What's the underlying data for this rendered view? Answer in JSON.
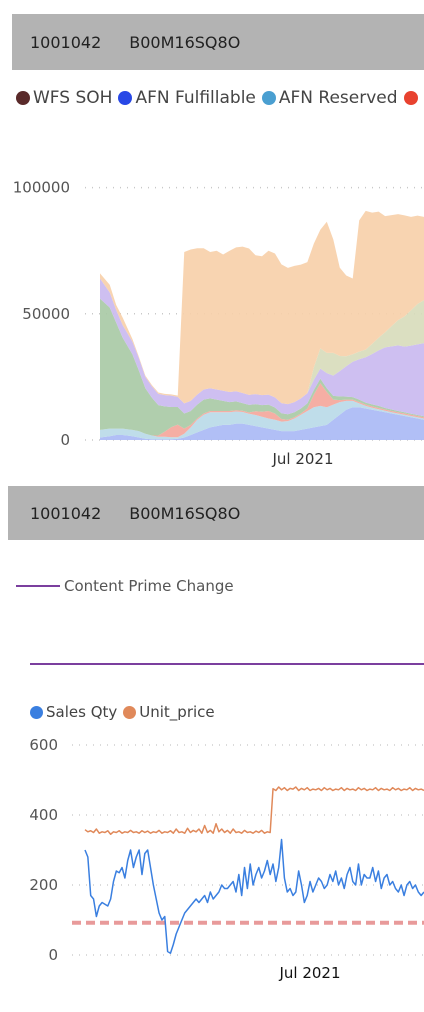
{
  "header1": {
    "id": "1001042",
    "asin": "B00M16SQ8O"
  },
  "header2": {
    "id": "1001042",
    "asin": "B00M16SQ8O"
  },
  "legend1": [
    {
      "label": "WFS SOH",
      "color": "#5a2a2a"
    },
    {
      "label": "AFN Fulfillable",
      "color": "#2848e6"
    },
    {
      "label": "AFN Reserved",
      "color": "#4a9fd1"
    },
    {
      "label": "",
      "color": "#e8422f"
    }
  ],
  "legend2": {
    "label": "Content Prime Change",
    "color": "#7b3f9e"
  },
  "legend3": [
    {
      "label": "Sales Qty",
      "color": "#3a7fe0"
    },
    {
      "label": "Unit_price",
      "color": "#e0895a"
    }
  ],
  "chart_data": [
    {
      "type": "area",
      "stacked": true,
      "x_tick_label": "Jul 2021",
      "ylim": [
        0,
        105000
      ],
      "y_ticks": [
        0,
        50000,
        100000
      ],
      "x": [
        0,
        3,
        5,
        7,
        10,
        12,
        14,
        16,
        18,
        20,
        22,
        24,
        26,
        28,
        30,
        32,
        34,
        36,
        38,
        40,
        42,
        44,
        46,
        48,
        50,
        52,
        54,
        56,
        58,
        60,
        62,
        64,
        66,
        68,
        70,
        72,
        74,
        76,
        78,
        80,
        82,
        84,
        86,
        88,
        90,
        92,
        94,
        96,
        98,
        100
      ],
      "series": [
        {
          "color": "#a8b8f5",
          "values": [
            1000,
            1500,
            2000,
            2000,
            1500,
            1000,
            500,
            300,
            300,
            300,
            300,
            500,
            1000,
            2000,
            3000,
            4000,
            5000,
            5500,
            6000,
            6000,
            6500,
            6500,
            6000,
            5500,
            5000,
            4500,
            4000,
            3500,
            3500,
            3500,
            4000,
            4500,
            5000,
            5500,
            6000,
            8000,
            10000,
            12000,
            13000,
            13000,
            12500,
            12000,
            11500,
            11000,
            10500,
            10000,
            9500,
            9000,
            8500,
            8000
          ]
        },
        {
          "color": "#b8d9e8",
          "values": [
            3000,
            3000,
            2500,
            2500,
            2500,
            2500,
            2000,
            1500,
            1000,
            1000,
            800,
            600,
            1500,
            3000,
            5000,
            6000,
            6000,
            5500,
            5000,
            5000,
            4800,
            4600,
            4400,
            4400,
            4200,
            4000,
            4000,
            3800,
            4000,
            5000,
            6000,
            7000,
            8000,
            8000,
            7000,
            6000,
            5000,
            3500,
            2500,
            1500,
            1000,
            800,
            700,
            600,
            500,
            500,
            500,
            500,
            500,
            500
          ]
        },
        {
          "color": "#f4a59a",
          "values": [
            0,
            0,
            0,
            0,
            0,
            0,
            0,
            0,
            500,
            2000,
            4000,
            5000,
            2000,
            1000,
            500,
            500,
            500,
            500,
            500,
            500,
            500,
            500,
            500,
            1500,
            2000,
            3000,
            2500,
            1000,
            500,
            500,
            500,
            1000,
            5000,
            9000,
            6000,
            2000,
            800,
            500,
            500,
            500,
            500,
            500,
            500,
            500,
            500,
            500,
            500,
            500,
            500,
            500
          ]
        },
        {
          "color": "#a7c9a4",
          "values": [
            52000,
            48000,
            42000,
            36000,
            30000,
            24000,
            18000,
            15000,
            12000,
            10000,
            8000,
            7000,
            6000,
            5500,
            5500,
            5500,
            5000,
            4500,
            4000,
            3500,
            3500,
            3000,
            3000,
            2800,
            2600,
            2500,
            2400,
            2300,
            2200,
            2000,
            2000,
            2000,
            1800,
            1800,
            1500,
            1500,
            1500,
            1200,
            1000,
            1000,
            800,
            800,
            800,
            600,
            600,
            500,
            500,
            400,
            400,
            400
          ]
        },
        {
          "color": "#c9b8ef",
          "values": [
            8000,
            6000,
            5000,
            5000,
            5000,
            5000,
            4500,
            4500,
            4500,
            4500,
            4500,
            4000,
            4000,
            4000,
            4000,
            4000,
            4000,
            4000,
            4000,
            4000,
            4000,
            4000,
            4000,
            4000,
            4000,
            4000,
            4000,
            4000,
            4000,
            4000,
            4000,
            4000,
            4000,
            4000,
            6000,
            8000,
            10000,
            12000,
            14000,
            16000,
            18000,
            20000,
            22000,
            24000,
            25000,
            26000,
            26000,
            27000,
            28000,
            29000
          ]
        },
        {
          "color": "#d7dcba",
          "values": [
            0,
            0,
            0,
            0,
            0,
            0,
            0,
            0,
            0,
            0,
            0,
            0,
            0,
            0,
            0,
            0,
            0,
            0,
            0,
            0,
            0,
            0,
            0,
            0,
            0,
            0,
            0,
            0,
            0,
            0,
            0,
            0,
            5000,
            8000,
            8000,
            9000,
            6000,
            4000,
            3000,
            3000,
            3000,
            4000,
            5000,
            6000,
            8000,
            10000,
            12000,
            14000,
            16000,
            17000
          ]
        },
        {
          "color": "#f7cfa8",
          "values": [
            2000,
            3000,
            2000,
            3000,
            1000,
            500,
            500,
            500,
            500,
            500,
            500,
            500,
            60000,
            60000,
            58000,
            56000,
            54000,
            55000,
            54000,
            56000,
            57000,
            58000,
            58000,
            55000,
            55000,
            57000,
            57000,
            55000,
            54000,
            54000,
            53000,
            52000,
            49000,
            47000,
            52000,
            45000,
            35000,
            32000,
            30000,
            52000,
            55000,
            52000,
            50000,
            46000,
            44000,
            42000,
            40000,
            37000,
            35000,
            33000
          ]
        }
      ]
    },
    {
      "type": "line",
      "series_name": "Content Prime Change",
      "color": "#7b3f9e",
      "values": []
    },
    {
      "type": "line",
      "x_tick_label": "Jul 2021",
      "ylim": [
        0,
        600
      ],
      "y_ticks": [
        0,
        200,
        400,
        600
      ],
      "reference_line": {
        "value": 92,
        "color": "#e89a9a",
        "style": "dashed"
      },
      "series": [
        {
          "name": "Sales Qty",
          "color": "#3a7fe0",
          "values": [
            300,
            280,
            170,
            160,
            110,
            140,
            150,
            145,
            140,
            160,
            210,
            240,
            235,
            250,
            220,
            270,
            300,
            250,
            280,
            300,
            230,
            290,
            300,
            250,
            200,
            160,
            120,
            100,
            110,
            10,
            5,
            30,
            60,
            80,
            100,
            120,
            130,
            140,
            150,
            160,
            150,
            160,
            170,
            150,
            180,
            160,
            170,
            180,
            200,
            190,
            190,
            200,
            210,
            180,
            230,
            170,
            250,
            190,
            260,
            200,
            230,
            250,
            220,
            240,
            270,
            230,
            260,
            210,
            250,
            330,
            220,
            180,
            190,
            170,
            180,
            240,
            200,
            150,
            170,
            210,
            180,
            200,
            220,
            210,
            190,
            200,
            230,
            210,
            240,
            200,
            220,
            190,
            230,
            250,
            210,
            200,
            260,
            200,
            230,
            220,
            220,
            250,
            210,
            240,
            190,
            220,
            230,
            200,
            210,
            190,
            180,
            200,
            170,
            200,
            210,
            190,
            200,
            180,
            170,
            180
          ]
        },
        {
          "name": "Unit_price",
          "color": "#e0895a",
          "values": [
            358,
            352,
            355,
            350,
            360,
            348,
            352,
            350,
            355,
            345,
            352,
            350,
            355,
            348,
            352,
            350,
            356,
            350,
            352,
            348,
            355,
            350,
            354,
            348,
            352,
            350,
            356,
            348,
            352,
            350,
            355,
            348,
            360,
            350,
            352,
            348,
            362,
            350,
            356,
            352,
            360,
            348,
            370,
            350,
            356,
            348,
            375,
            352,
            360,
            350,
            356,
            348,
            360,
            350,
            352,
            348,
            356,
            350,
            352,
            348,
            354,
            350,
            356,
            348,
            352,
            350,
            475,
            470,
            480,
            472,
            478,
            470,
            476,
            474,
            480,
            470,
            476,
            472,
            478,
            470,
            474,
            472,
            476,
            470,
            478,
            472,
            476,
            470,
            474,
            472,
            478,
            470,
            476,
            472,
            474,
            470,
            478,
            472,
            476,
            470,
            474,
            472,
            478,
            470,
            476,
            472,
            474,
            470,
            478,
            472,
            476,
            470,
            474,
            472,
            478,
            470,
            476,
            472,
            474,
            470
          ]
        }
      ]
    }
  ]
}
